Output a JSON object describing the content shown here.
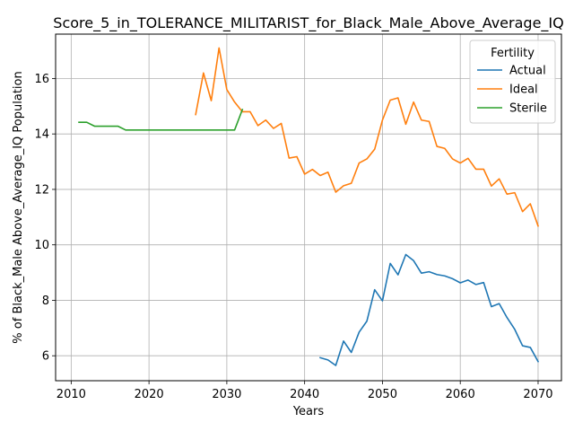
{
  "chart_data": {
    "type": "line",
    "title": "Score_5_in_TOLERANCE_MILITARIST_for_Black_Male_Above_Average_IQ",
    "xlabel": "Years",
    "ylabel": "% of Black_Male Above_Average_IQ Population",
    "xlim": [
      2008,
      2073
    ],
    "ylim": [
      5.1,
      17.6
    ],
    "xticks": [
      2010,
      2020,
      2030,
      2040,
      2050,
      2060,
      2070
    ],
    "yticks": [
      6,
      8,
      10,
      12,
      14,
      16
    ],
    "grid": true,
    "legend": {
      "title": "Fertility",
      "placement": "top-right"
    },
    "series": [
      {
        "name": "Actual",
        "color": "#1f77b4",
        "x": [
          2042,
          2043,
          2044,
          2045,
          2046,
          2047,
          2048,
          2049,
          2050,
          2051,
          2052,
          2053,
          2054,
          2055,
          2056,
          2057,
          2058,
          2059,
          2060,
          2061,
          2062,
          2063,
          2064,
          2065,
          2066,
          2067,
          2068,
          2069,
          2070
        ],
        "y": [
          5.93,
          5.85,
          5.65,
          6.53,
          6.12,
          6.85,
          7.25,
          8.38,
          7.98,
          9.33,
          8.92,
          9.65,
          9.43,
          8.98,
          9.03,
          8.93,
          8.88,
          8.78,
          8.63,
          8.73,
          8.57,
          8.64,
          7.77,
          7.88,
          7.38,
          6.95,
          6.36,
          6.3,
          5.79
        ]
      },
      {
        "name": "Ideal",
        "color": "#ff7f0e",
        "x": [
          2026,
          2027,
          2028,
          2029,
          2030,
          2031,
          2032,
          2033,
          2034,
          2035,
          2036,
          2037,
          2038,
          2039,
          2040,
          2041,
          2042,
          2043,
          2044,
          2045,
          2046,
          2047,
          2048,
          2049,
          2050,
          2051,
          2052,
          2053,
          2054,
          2055,
          2056,
          2057,
          2058,
          2059,
          2060,
          2061,
          2062,
          2063,
          2064,
          2065,
          2066,
          2067,
          2068,
          2069,
          2070
        ],
        "y": [
          14.7,
          16.2,
          15.2,
          17.1,
          15.6,
          15.15,
          14.8,
          14.8,
          14.3,
          14.5,
          14.2,
          14.38,
          13.13,
          13.18,
          12.55,
          12.72,
          12.5,
          12.62,
          11.9,
          12.13,
          12.22,
          12.95,
          13.1,
          13.45,
          14.5,
          15.22,
          15.3,
          14.35,
          15.15,
          14.5,
          14.45,
          13.55,
          13.48,
          13.1,
          12.95,
          13.12,
          12.73,
          12.73,
          12.12,
          12.38,
          11.83,
          11.88,
          11.2,
          11.48,
          10.68
        ]
      },
      {
        "name": "Sterile",
        "color": "#2ca02c",
        "x": [
          2011,
          2012,
          2013,
          2014,
          2015,
          2016,
          2017,
          2018,
          2019,
          2020,
          2021,
          2022,
          2023,
          2024,
          2025,
          2026,
          2027,
          2028,
          2029,
          2030,
          2031,
          2032
        ],
        "y": [
          14.42,
          14.42,
          14.28,
          14.28,
          14.28,
          14.28,
          14.14,
          14.14,
          14.14,
          14.14,
          14.14,
          14.14,
          14.14,
          14.14,
          14.14,
          14.14,
          14.14,
          14.14,
          14.14,
          14.14,
          14.14,
          14.88
        ]
      }
    ]
  }
}
